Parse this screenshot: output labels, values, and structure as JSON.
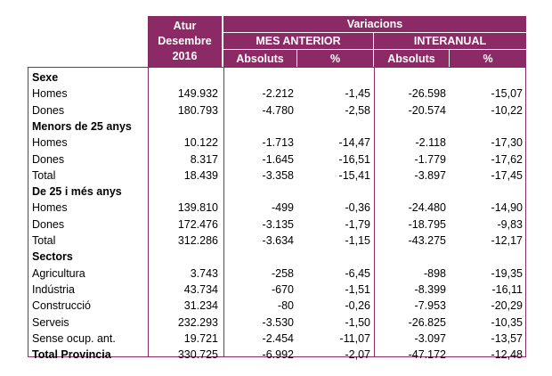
{
  "header": {
    "atur_lines": [
      "Atur",
      "Desembre",
      "2016"
    ],
    "variacions": "Variacions",
    "mes_anterior": "MES ANTERIOR",
    "interanual": "INTERANUAL",
    "cols": [
      "Absoluts",
      "%",
      "Absoluts",
      "%"
    ]
  },
  "rows": [
    {
      "kind": "section",
      "label": "Sexe",
      "values": [
        "",
        "",
        "",
        "",
        ""
      ]
    },
    {
      "kind": "data",
      "label": "Homes",
      "values": [
        "149.932",
        "-2.212",
        "-1,45",
        "-26.598",
        "-15,07"
      ]
    },
    {
      "kind": "data",
      "label": "Dones",
      "values": [
        "180.793",
        "-4.780",
        "-2,58",
        "-20.574",
        "-10,22"
      ]
    },
    {
      "kind": "section",
      "label": "Menors de 25 anys",
      "values": [
        "",
        "",
        "",
        "",
        ""
      ]
    },
    {
      "kind": "data",
      "label": "Homes",
      "values": [
        "10.122",
        "-1.713",
        "-14,47",
        "-2.118",
        "-17,30"
      ]
    },
    {
      "kind": "data",
      "label": "Dones",
      "values": [
        "8.317",
        "-1.645",
        "-16,51",
        "-1.779",
        "-17,62"
      ]
    },
    {
      "kind": "data",
      "label": "Total",
      "values": [
        "18.439",
        "-3.358",
        "-15,41",
        "-3.897",
        "-17,45"
      ]
    },
    {
      "kind": "section",
      "label": "De 25 i més anys",
      "values": [
        "",
        "",
        "",
        "",
        ""
      ]
    },
    {
      "kind": "data",
      "label": "Homes",
      "values": [
        "139.810",
        "-499",
        "-0,36",
        "-24.480",
        "-14,90"
      ]
    },
    {
      "kind": "data",
      "label": "Dones",
      "values": [
        "172.476",
        "-3.135",
        "-1,79",
        "-18.795",
        "-9,83"
      ]
    },
    {
      "kind": "data",
      "label": "Total",
      "values": [
        "312.286",
        "-3.634",
        "-1,15",
        "-43.275",
        "-12,17"
      ]
    },
    {
      "kind": "section",
      "label": "Sectors",
      "values": [
        "",
        "",
        "",
        "",
        ""
      ]
    },
    {
      "kind": "data",
      "label": "Agricultura",
      "values": [
        "3.743",
        "-258",
        "-6,45",
        "-898",
        "-19,35"
      ]
    },
    {
      "kind": "data",
      "label": "Indústria",
      "values": [
        "43.734",
        "-670",
        "-1,51",
        "-8.399",
        "-16,11"
      ]
    },
    {
      "kind": "data",
      "label": "Construcció",
      "values": [
        "31.234",
        "-80",
        "-0,26",
        "-7.953",
        "-20,29"
      ]
    },
    {
      "kind": "data",
      "label": "Serveis",
      "values": [
        "232.293",
        "-3.530",
        "-1,50",
        "-26.825",
        "-10,35"
      ]
    },
    {
      "kind": "data",
      "label": "Sense ocup. ant.",
      "values": [
        "19.721",
        "-2.454",
        "-11,07",
        "-3.097",
        "-13,57"
      ]
    },
    {
      "kind": "total",
      "label": "Total Provincia",
      "values": [
        "330.725",
        "-6.992",
        "-2,07",
        "-47.172",
        "-12,48"
      ]
    }
  ],
  "colors": {
    "header_bg": "#8c2a66",
    "header_text": "#ffffff",
    "border": "#8c2a66"
  }
}
